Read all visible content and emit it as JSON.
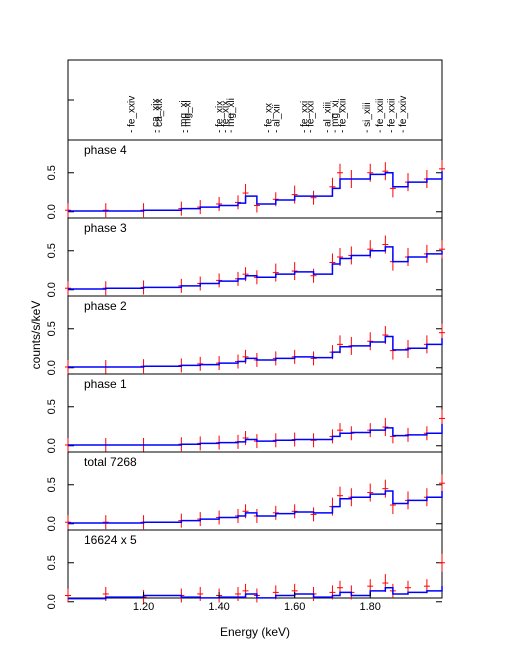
{
  "chart_data": {
    "type": "line",
    "xlabel": "Energy (keV)",
    "ylabel": "counts/s/keV",
    "xlim": [
      1.0,
      1.99
    ],
    "x_ticks": [
      1.2,
      1.4,
      1.6,
      1.8
    ],
    "x_tick_labels": [
      "1.20",
      "1.40",
      "1.60",
      "1.80"
    ],
    "grid": false,
    "line_labels": [
      {
        "label": "fe_xxiv",
        "energy": 1.167
      },
      {
        "label": "ca_xix",
        "energy": 1.23
      },
      {
        "label": "ca_xix",
        "energy": 1.24
      },
      {
        "label": "mg_xi",
        "energy": 1.305
      },
      {
        "label": "mg_xi",
        "energy": 1.315
      },
      {
        "label": "fe_xix",
        "energy": 1.4
      },
      {
        "label": "fe_xix",
        "energy": 1.415
      },
      {
        "label": "mg_xii",
        "energy": 1.43
      },
      {
        "label": "fe_xx",
        "energy": 1.53
      },
      {
        "label": "al_xii",
        "energy": 1.55
      },
      {
        "label": "fe_xxi",
        "energy": 1.625
      },
      {
        "label": "fe_xxi",
        "energy": 1.64
      },
      {
        "label": "al_xiii",
        "energy": 1.685
      },
      {
        "label": "mg_xi",
        "energy": 1.705
      },
      {
        "label": "fe_xxii",
        "energy": 1.725
      },
      {
        "label": "si_xiii",
        "energy": 1.79
      },
      {
        "label": "fe_xxii",
        "energy": 1.825
      },
      {
        "label": "fe_xxii",
        "energy": 1.855
      },
      {
        "label": "fe_xxiv",
        "energy": 1.885
      }
    ],
    "panels": [
      {
        "label": "phase 4",
        "ylim": [
          -0.08,
          0.92
        ],
        "y_ticks": [
          0.0,
          0.5
        ],
        "y_tick_labels": [
          "0.0",
          "0.5"
        ],
        "series": [
          {
            "name": "data",
            "color": "#ff0000",
            "x": [
              1.0,
              1.1,
              1.2,
              1.3,
              1.35,
              1.4,
              1.45,
              1.47,
              1.5,
              1.55,
              1.6,
              1.65,
              1.7,
              1.72,
              1.75,
              1.8,
              1.84,
              1.86,
              1.9,
              1.95,
              1.99
            ],
            "y": [
              0.02,
              0.02,
              0.02,
              0.04,
              0.06,
              0.1,
              0.12,
              0.24,
              0.08,
              0.16,
              0.22,
              0.18,
              0.32,
              0.5,
              0.42,
              0.5,
              0.52,
              0.3,
              0.38,
              0.42,
              0.55
            ]
          },
          {
            "name": "model",
            "color": "#0000ff",
            "x": [
              1.0,
              1.1,
              1.2,
              1.3,
              1.35,
              1.4,
              1.45,
              1.47,
              1.5,
              1.55,
              1.6,
              1.65,
              1.7,
              1.72,
              1.75,
              1.8,
              1.84,
              1.86,
              1.9,
              1.95,
              1.99
            ],
            "y": [
              0.01,
              0.01,
              0.02,
              0.04,
              0.06,
              0.08,
              0.11,
              0.2,
              0.1,
              0.15,
              0.2,
              0.2,
              0.3,
              0.42,
              0.42,
              0.48,
              0.5,
              0.32,
              0.38,
              0.42,
              0.52
            ]
          }
        ]
      },
      {
        "label": "phase 3",
        "ylim": [
          -0.08,
          0.92
        ],
        "y_ticks": [
          0.0,
          0.5
        ],
        "y_tick_labels": [
          "0.0",
          "0.5"
        ],
        "series": [
          {
            "name": "data",
            "color": "#ff0000",
            "x": [
              1.0,
              1.1,
              1.2,
              1.3,
              1.35,
              1.4,
              1.45,
              1.47,
              1.5,
              1.55,
              1.6,
              1.65,
              1.7,
              1.72,
              1.75,
              1.8,
              1.84,
              1.86,
              1.9,
              1.95,
              1.99
            ],
            "y": [
              0.02,
              0.02,
              0.03,
              0.05,
              0.08,
              0.12,
              0.14,
              0.2,
              0.16,
              0.22,
              0.24,
              0.18,
              0.35,
              0.42,
              0.44,
              0.52,
              0.58,
              0.36,
              0.42,
              0.46,
              0.52
            ]
          },
          {
            "name": "model",
            "color": "#0000ff",
            "x": [
              1.0,
              1.1,
              1.2,
              1.3,
              1.35,
              1.4,
              1.45,
              1.47,
              1.5,
              1.55,
              1.6,
              1.65,
              1.7,
              1.72,
              1.75,
              1.8,
              1.84,
              1.86,
              1.9,
              1.95,
              1.99
            ],
            "y": [
              0.01,
              0.02,
              0.03,
              0.05,
              0.08,
              0.11,
              0.14,
              0.18,
              0.16,
              0.2,
              0.23,
              0.2,
              0.33,
              0.4,
              0.44,
              0.5,
              0.55,
              0.36,
              0.42,
              0.46,
              0.5
            ]
          }
        ]
      },
      {
        "label": "phase 2",
        "ylim": [
          -0.08,
          0.92
        ],
        "y_ticks": [
          0.0,
          0.5
        ],
        "y_tick_labels": [
          "0.0",
          "0.5"
        ],
        "series": [
          {
            "name": "data",
            "color": "#ff0000",
            "x": [
              1.0,
              1.1,
              1.2,
              1.3,
              1.35,
              1.4,
              1.45,
              1.47,
              1.5,
              1.55,
              1.6,
              1.65,
              1.7,
              1.72,
              1.75,
              1.8,
              1.84,
              1.86,
              1.9,
              1.95,
              1.99
            ],
            "y": [
              0.01,
              0.01,
              0.02,
              0.03,
              0.05,
              0.06,
              0.08,
              0.14,
              0.1,
              0.12,
              0.14,
              0.12,
              0.2,
              0.3,
              0.28,
              0.34,
              0.42,
              0.22,
              0.24,
              0.3,
              0.45
            ]
          },
          {
            "name": "model",
            "color": "#0000ff",
            "x": [
              1.0,
              1.1,
              1.2,
              1.3,
              1.35,
              1.4,
              1.45,
              1.47,
              1.5,
              1.55,
              1.6,
              1.65,
              1.7,
              1.72,
              1.75,
              1.8,
              1.84,
              1.86,
              1.9,
              1.95,
              1.99
            ],
            "y": [
              0.01,
              0.01,
              0.02,
              0.03,
              0.04,
              0.06,
              0.08,
              0.12,
              0.1,
              0.12,
              0.14,
              0.13,
              0.2,
              0.27,
              0.28,
              0.33,
              0.4,
              0.23,
              0.25,
              0.3,
              0.38
            ]
          }
        ]
      },
      {
        "label": "phase 1",
        "ylim": [
          -0.08,
          0.92
        ],
        "y_ticks": [
          0.0,
          0.5
        ],
        "y_tick_labels": [
          "0.0",
          "0.5"
        ],
        "series": [
          {
            "name": "data",
            "color": "#ff0000",
            "x": [
              1.0,
              1.1,
              1.2,
              1.3,
              1.35,
              1.4,
              1.45,
              1.47,
              1.5,
              1.55,
              1.6,
              1.65,
              1.7,
              1.72,
              1.75,
              1.8,
              1.84,
              1.86,
              1.9,
              1.95,
              1.99
            ],
            "y": [
              0.01,
              0.01,
              0.01,
              0.02,
              0.03,
              0.04,
              0.05,
              0.1,
              0.06,
              0.07,
              0.08,
              0.07,
              0.12,
              0.2,
              0.16,
              0.2,
              0.24,
              0.12,
              0.14,
              0.16,
              0.35
            ]
          },
          {
            "name": "model",
            "color": "#0000ff",
            "x": [
              1.0,
              1.1,
              1.2,
              1.3,
              1.35,
              1.4,
              1.45,
              1.47,
              1.5,
              1.55,
              1.6,
              1.65,
              1.7,
              1.72,
              1.75,
              1.8,
              1.84,
              1.86,
              1.9,
              1.95,
              1.99
            ],
            "y": [
              0.01,
              0.01,
              0.01,
              0.02,
              0.03,
              0.04,
              0.05,
              0.08,
              0.06,
              0.07,
              0.08,
              0.08,
              0.12,
              0.16,
              0.17,
              0.2,
              0.23,
              0.13,
              0.14,
              0.16,
              0.28
            ]
          }
        ]
      },
      {
        "label": "total 7268",
        "ylim": [
          -0.08,
          0.92
        ],
        "y_ticks": [
          0.0,
          0.5
        ],
        "y_tick_labels": [
          "0.0",
          "0.5"
        ],
        "series": [
          {
            "name": "data",
            "color": "#ff0000",
            "x": [
              1.0,
              1.1,
              1.2,
              1.3,
              1.35,
              1.4,
              1.45,
              1.47,
              1.5,
              1.55,
              1.6,
              1.65,
              1.7,
              1.72,
              1.75,
              1.8,
              1.84,
              1.86,
              1.9,
              1.95,
              1.99
            ],
            "y": [
              0.02,
              0.02,
              0.02,
              0.04,
              0.06,
              0.08,
              0.1,
              0.16,
              0.1,
              0.14,
              0.16,
              0.12,
              0.22,
              0.36,
              0.34,
              0.4,
              0.45,
              0.24,
              0.3,
              0.34,
              0.52
            ]
          },
          {
            "name": "model",
            "color": "#0000ff",
            "x": [
              1.0,
              1.1,
              1.2,
              1.3,
              1.35,
              1.4,
              1.45,
              1.47,
              1.5,
              1.55,
              1.6,
              1.65,
              1.7,
              1.72,
              1.75,
              1.8,
              1.84,
              1.86,
              1.9,
              1.95,
              1.99
            ],
            "y": [
              0.01,
              0.01,
              0.02,
              0.04,
              0.06,
              0.08,
              0.1,
              0.14,
              0.1,
              0.13,
              0.15,
              0.14,
              0.22,
              0.32,
              0.34,
              0.38,
              0.42,
              0.26,
              0.3,
              0.34,
              0.42
            ]
          }
        ]
      },
      {
        "label": "16624 x 5",
        "ylim": [
          -0.08,
          0.92
        ],
        "y_ticks": [
          0.0,
          0.5
        ],
        "y_tick_labels": [
          "0.0",
          "0.5"
        ],
        "series": [
          {
            "name": "data",
            "color": "#ff0000",
            "x": [
              1.0,
              1.1,
              1.2,
              1.3,
              1.35,
              1.4,
              1.45,
              1.47,
              1.5,
              1.55,
              1.6,
              1.65,
              1.7,
              1.72,
              1.75,
              1.8,
              1.84,
              1.86,
              1.9,
              1.95,
              1.99
            ],
            "y": [
              0.08,
              0.1,
              0.06,
              0.08,
              0.1,
              0.08,
              0.1,
              0.14,
              0.08,
              0.12,
              0.14,
              0.1,
              0.12,
              0.18,
              0.12,
              0.2,
              0.24,
              0.14,
              0.18,
              0.2,
              0.5
            ]
          },
          {
            "name": "model",
            "color": "#0000ff",
            "x": [
              1.0,
              1.1,
              1.2,
              1.3,
              1.35,
              1.4,
              1.45,
              1.47,
              1.5,
              1.55,
              1.6,
              1.65,
              1.7,
              1.72,
              1.75,
              1.8,
              1.84,
              1.86,
              1.9,
              1.95,
              1.99
            ],
            "y": [
              0.04,
              0.06,
              0.08,
              0.06,
              0.05,
              0.06,
              0.06,
              0.1,
              0.05,
              0.08,
              0.1,
              0.06,
              0.08,
              0.12,
              0.08,
              0.14,
              0.18,
              0.1,
              0.12,
              0.14,
              0.2
            ]
          }
        ]
      }
    ]
  }
}
